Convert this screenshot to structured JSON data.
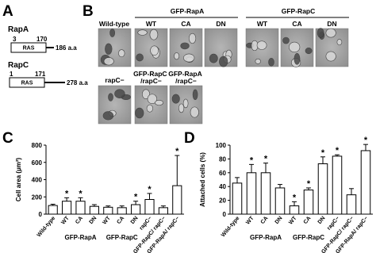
{
  "panel_a": {
    "label": "A",
    "rapa": {
      "name": "RapA",
      "start": "3",
      "end": "170",
      "domain": "RAS",
      "length": "186 a.a"
    },
    "rapc": {
      "name": "RapC",
      "start": "1",
      "end": "171",
      "domain": "RAS",
      "length": "278 a.a"
    }
  },
  "panel_b": {
    "label": "B",
    "wild_type": "Wild-type",
    "rapa_group": "GFP-RapA",
    "rapa_cols": [
      "WT",
      "CA",
      "DN"
    ],
    "rapc_group": "GFP-RapC",
    "rapc_cols": [
      "WT",
      "CA",
      "DN"
    ],
    "row2": [
      "rapC−",
      "GFP-RapC /rapC−",
      "GFP-RapA /rapC−"
    ]
  },
  "chart_data": [
    {
      "type": "bar",
      "panel_label": "C",
      "ylabel": "Cell area (µm²)",
      "categories": [
        "Wild-type",
        "WT",
        "CA",
        "DN",
        "WT",
        "CA",
        "DN",
        "rapC−",
        "GFP-RapC/ rapC−",
        "GFP-RapA/ rapC−"
      ],
      "group_labels": [
        "GFP-RapA",
        "GFP-RapC"
      ],
      "values": [
        100,
        150,
        150,
        90,
        80,
        75,
        110,
        170,
        75,
        330
      ],
      "errors": [
        15,
        40,
        40,
        20,
        15,
        20,
        40,
        70,
        20,
        350
      ],
      "annotations": [
        null,
        "*",
        "*",
        null,
        null,
        null,
        "*",
        "*",
        null,
        "*"
      ],
      "ylim": [
        0,
        800
      ],
      "yticks": [
        0,
        200,
        400,
        600,
        800
      ],
      "color": "#ffffff"
    },
    {
      "type": "bar",
      "panel_label": "D",
      "ylabel": "Attached cells (%)",
      "categories": [
        "Wild-type",
        "WT",
        "CA",
        "DN",
        "WT",
        "CA",
        "DN",
        "rapC−",
        "GFP-RapC/ rapC−",
        "GFP-RapA/ rapC−"
      ],
      "group_labels": [
        "GFP-RapA",
        "GFP-RapC"
      ],
      "values": [
        45,
        60,
        60,
        38,
        12,
        35,
        73,
        84,
        28,
        92
      ],
      "errors": [
        8,
        12,
        14,
        5,
        6,
        3,
        10,
        2,
        9,
        9
      ],
      "annotations": [
        null,
        "*",
        "*",
        null,
        "*",
        "*",
        "*",
        "*",
        null,
        "*"
      ],
      "ylim": [
        0,
        100
      ],
      "yticks": [
        0,
        20,
        40,
        60,
        80,
        100
      ],
      "color": "#ffffff"
    }
  ]
}
